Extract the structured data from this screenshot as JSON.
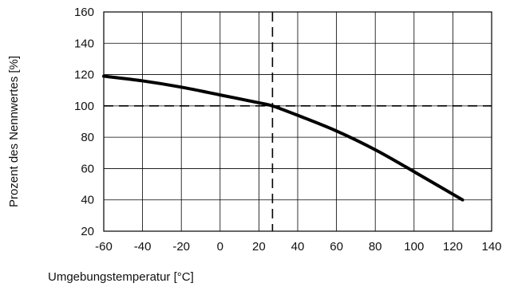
{
  "chart_data": {
    "type": "line",
    "title": "",
    "xlabel": "Umgebungstemperatur [°C]",
    "ylabel": "Prozent des Nennwertes [%]",
    "xlim": [
      -60,
      140
    ],
    "ylim": [
      20,
      160
    ],
    "xticks": [
      -60,
      -40,
      -20,
      0,
      20,
      40,
      60,
      80,
      100,
      120,
      140
    ],
    "yticks": [
      20,
      40,
      60,
      80,
      100,
      120,
      140,
      160
    ],
    "grid": true,
    "legend": "none",
    "colors": {
      "line": "#000000",
      "grid": "#000000",
      "reference": "#000000"
    },
    "series": [
      {
        "values": [
          {
            "x": -60,
            "y": 119
          },
          {
            "x": -40,
            "y": 116
          },
          {
            "x": -20,
            "y": 112
          },
          {
            "x": 0,
            "y": 107
          },
          {
            "x": 20,
            "y": 102
          },
          {
            "x": 27,
            "y": 100
          },
          {
            "x": 40,
            "y": 94
          },
          {
            "x": 60,
            "y": 84
          },
          {
            "x": 80,
            "y": 72
          },
          {
            "x": 100,
            "y": 58
          },
          {
            "x": 125,
            "y": 40
          }
        ]
      }
    ],
    "reference_lines": {
      "horizontal_y": 100,
      "vertical_x": 27,
      "style": "dashed"
    }
  }
}
